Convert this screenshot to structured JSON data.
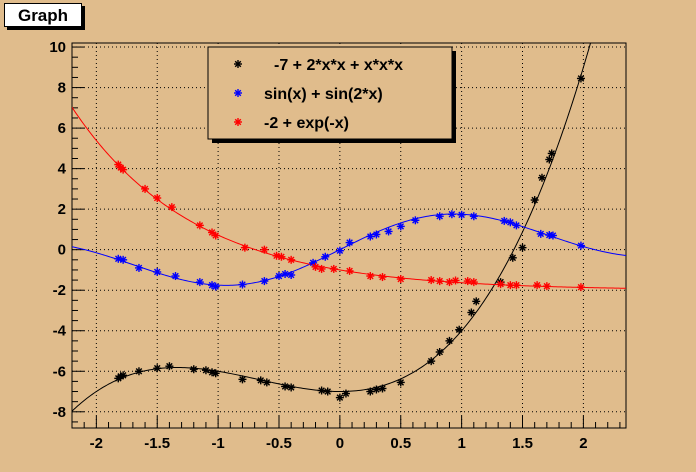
{
  "window": {
    "title": "Graph"
  },
  "colors": {
    "background": "#e0bc8c",
    "frame": "#e0bc8c",
    "series_0": "#000000",
    "series_1": "#0000ff",
    "series_2": "#ff0000"
  },
  "chart_data": {
    "type": "scatter",
    "title": "Graph",
    "xlabel": "",
    "ylabel": "",
    "xlim": [
      -2.2,
      2.35
    ],
    "ylim": [
      -8.8,
      10.2
    ],
    "grid": true,
    "legend_position": "top-center",
    "x_ticks": [
      -2,
      -1.5,
      -1,
      -0.5,
      0,
      0.5,
      1,
      1.5,
      2
    ],
    "x_tick_labels": [
      "-2",
      "-1.5",
      "-1",
      "-0.5",
      "0",
      "0.5",
      "1",
      "1.5",
      "2"
    ],
    "y_ticks": [
      -8,
      -6,
      -4,
      -2,
      0,
      2,
      4,
      6,
      8,
      10
    ],
    "y_tick_labels": [
      "-8",
      "-6",
      "-4",
      "-2",
      "0",
      "2",
      "4",
      "6",
      "8",
      "10"
    ],
    "series": [
      {
        "name": "-7 + 2*x*x + x*x*x",
        "color": "#000000",
        "marker": "asterisk",
        "curve": "cubic",
        "x": [
          -1.82,
          -1.8,
          -1.78,
          -1.65,
          -1.5,
          -1.4,
          -1.2,
          -1.1,
          -1.05,
          -1.02,
          -0.8,
          -0.65,
          -0.6,
          -0.45,
          -0.4,
          -0.15,
          -0.1,
          0.0,
          0.05,
          0.25,
          0.3,
          0.35,
          0.5,
          0.75,
          0.82,
          0.9,
          0.98,
          1.08,
          1.12,
          1.32,
          1.42,
          1.5,
          1.6,
          1.66,
          1.72,
          1.74,
          1.98
        ],
        "y": [
          -6.35,
          -6.25,
          -6.2,
          -6.0,
          -5.85,
          -5.75,
          -5.9,
          -5.95,
          -6.05,
          -6.1,
          -6.4,
          -6.45,
          -6.55,
          -6.75,
          -6.8,
          -6.95,
          -7.0,
          -7.3,
          -7.1,
          -7.0,
          -6.9,
          -6.85,
          -6.55,
          -5.5,
          -5.05,
          -4.5,
          -3.95,
          -3.1,
          -2.55,
          -1.6,
          -0.4,
          0.1,
          2.45,
          3.55,
          4.45,
          4.75,
          8.45
        ]
      },
      {
        "name": "sin(x) + sin(2*x)",
        "color": "#0000ff",
        "marker": "asterisk",
        "curve": "sin",
        "x": [
          -1.82,
          -1.78,
          -1.65,
          -1.5,
          -1.35,
          -1.15,
          -1.05,
          -1.02,
          -0.8,
          -0.62,
          -0.5,
          -0.45,
          -0.4,
          -0.22,
          -0.12,
          0.0,
          0.08,
          0.25,
          0.3,
          0.4,
          0.5,
          0.62,
          0.82,
          0.92,
          1.0,
          1.1,
          1.35,
          1.4,
          1.45,
          1.65,
          1.72,
          1.75,
          1.98
        ],
        "y": [
          -0.45,
          -0.5,
          -0.9,
          -1.1,
          -1.3,
          -1.6,
          -1.75,
          -1.82,
          -1.72,
          -1.55,
          -1.3,
          -1.2,
          -1.25,
          -0.65,
          -0.35,
          -0.05,
          0.35,
          0.65,
          0.75,
          0.9,
          1.15,
          1.45,
          1.65,
          1.75,
          1.72,
          1.65,
          1.42,
          1.35,
          1.2,
          0.78,
          0.72,
          0.7,
          0.2
        ]
      },
      {
        "name": "-2 + exp(-x)",
        "color": "#ff0000",
        "marker": "asterisk",
        "curve": "exp",
        "x": [
          -1.82,
          -1.8,
          -1.78,
          -1.6,
          -1.5,
          -1.38,
          -1.15,
          -1.05,
          -1.02,
          -0.78,
          -0.62,
          -0.52,
          -0.48,
          -0.4,
          -0.2,
          -0.15,
          -0.05,
          0.08,
          0.25,
          0.35,
          0.5,
          0.75,
          0.82,
          0.9,
          0.95,
          1.05,
          1.1,
          1.32,
          1.4,
          1.45,
          1.62,
          1.7,
          1.98
        ],
        "y": [
          4.2,
          4.05,
          3.95,
          3.0,
          2.55,
          2.1,
          1.2,
          0.85,
          0.7,
          0.1,
          0.0,
          -0.3,
          -0.35,
          -0.5,
          -0.85,
          -0.95,
          -0.95,
          -1.05,
          -1.3,
          -1.35,
          -1.45,
          -1.5,
          -1.55,
          -1.6,
          -1.52,
          -1.55,
          -1.6,
          -1.7,
          -1.75,
          -1.75,
          -1.75,
          -1.8,
          -1.85
        ]
      }
    ]
  }
}
